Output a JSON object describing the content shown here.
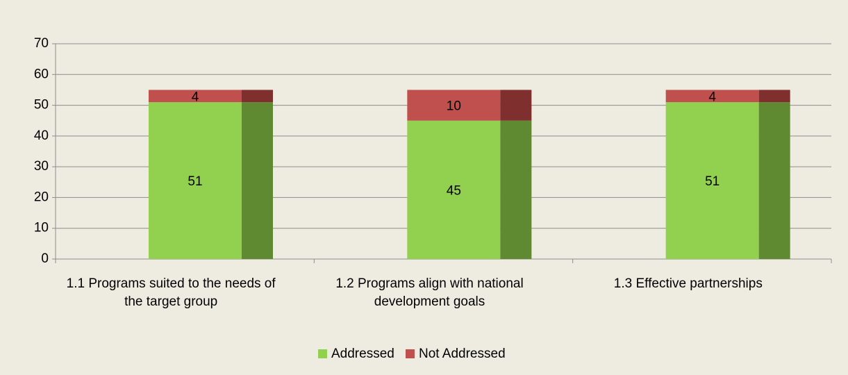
{
  "chart_data": {
    "type": "stacked_bar",
    "categories": [
      "1.1 Programs suited to the needs of the target group",
      "1.2 Programs align with national development goals",
      "1.3 Effective partnerships"
    ],
    "series": [
      {
        "name": "Addressed",
        "color": "#92d050",
        "side_color": "#5f8a32",
        "values": [
          51,
          45,
          51
        ]
      },
      {
        "name": "Not Addressed",
        "color": "#c0504d",
        "side_color": "#7f2f2e",
        "values": [
          4,
          10,
          4
        ]
      }
    ],
    "ylim": [
      0,
      70
    ],
    "yticks": [
      0,
      10,
      20,
      30,
      40,
      50,
      60,
      70
    ],
    "grid": true,
    "legend": "bottom"
  }
}
